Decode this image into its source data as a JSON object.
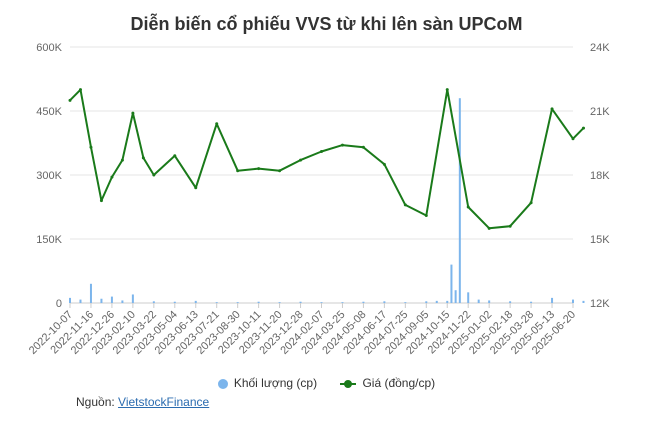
{
  "title": "Diễn biến cổ phiếu VVS từ khi lên sàn UPCoM",
  "legend": {
    "volume": "Khối lượng (cp)",
    "price": "Giá (đồng/cp)"
  },
  "source": {
    "label": "Nguồn:",
    "link": "VietstockFinance"
  },
  "colors": {
    "price": "#1a7a1a",
    "volume": "#7cb5ec",
    "grid": "#e6e6e6",
    "text": "#666666"
  },
  "chart_data": {
    "type": "line",
    "title": "Diễn biến cổ phiếu VVS từ khi lên sàn UPCoM",
    "grid": true,
    "legend_position": "bottom",
    "x_ticks": [
      "2022-10-07",
      "2022-11-16",
      "2022-12-26",
      "2023-02-10",
      "2023-03-22",
      "2023-05-04",
      "2023-06-13",
      "2023-07-21",
      "2023-08-30",
      "2023-10-11",
      "2023-11-20",
      "2023-12-28",
      "2024-02-07",
      "2024-03-25",
      "2024-05-08",
      "2024-06-17",
      "2024-07-25",
      "2024-09-05",
      "2024-10-15",
      "2024-11-22",
      "2025-01-02",
      "2025-02-18",
      "2025-03-28",
      "2025-05-13",
      "2025-06-20"
    ],
    "y_left": {
      "label": "Khối lượng (cp)",
      "range": [
        0,
        600000
      ],
      "ticks": [
        "0",
        "150K",
        "300K",
        "450K",
        "600K"
      ]
    },
    "y_right": {
      "label": "Giá (đồng/cp)",
      "range": [
        12000,
        24000
      ],
      "ticks": [
        "12K",
        "15K",
        "18K",
        "21K",
        "24K"
      ]
    },
    "series": [
      {
        "name": "Giá (đồng/cp)",
        "axis": "right",
        "x": [
          0,
          0.5,
          1,
          1.5,
          2,
          2.5,
          3,
          3.5,
          4,
          5,
          6,
          7,
          8,
          9,
          10,
          11,
          12,
          13,
          14,
          15,
          16,
          17,
          18,
          19,
          20,
          21,
          22,
          23,
          24,
          24.5
        ],
        "values": [
          21500,
          22000,
          19300,
          16800,
          17900,
          18700,
          20900,
          18800,
          18000,
          18900,
          17400,
          20400,
          18200,
          18300,
          18200,
          18700,
          19100,
          19400,
          19300,
          18500,
          16600,
          16100,
          22000,
          16500,
          15500,
          15600,
          16700,
          21100,
          19700,
          20200
        ]
      },
      {
        "name": "Khối lượng (cp)",
        "axis": "left",
        "x": [
          0,
          0.5,
          1,
          1.5,
          2,
          2.5,
          3,
          4,
          5,
          6,
          7,
          8,
          9,
          10,
          11,
          12,
          13,
          14,
          15,
          16,
          17,
          17.5,
          18,
          18.2,
          18.4,
          18.6,
          19,
          19.5,
          20,
          21,
          22,
          23,
          24,
          24.5
        ],
        "values": [
          12000,
          8000,
          45000,
          10000,
          15000,
          6000,
          20000,
          4000,
          3000,
          5000,
          2000,
          2000,
          3000,
          2000,
          3000,
          2000,
          2000,
          3000,
          4000,
          2000,
          4000,
          5000,
          5000,
          90000,
          30000,
          480000,
          25000,
          8000,
          6000,
          4000,
          3000,
          12000,
          8000,
          5000
        ]
      }
    ]
  }
}
